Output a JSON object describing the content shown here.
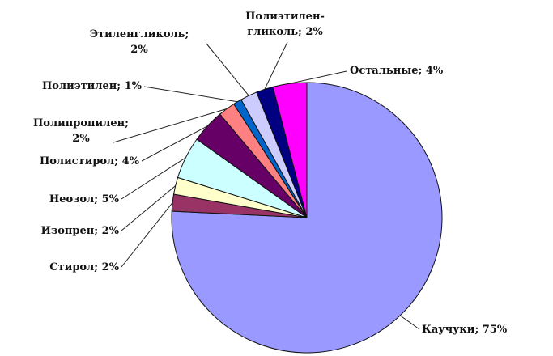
{
  "chart_data": {
    "type": "pie",
    "title": "",
    "unit": "%",
    "slices": [
      {
        "label": "Каучуки; 75%",
        "value": 75,
        "color": "#9999ff"
      },
      {
        "label": "Стирол; 2%",
        "value": 2,
        "color": "#993366"
      },
      {
        "label": "Изопрен; 2%",
        "value": 2,
        "color": "#ffffcc"
      },
      {
        "label": "Неозол; 5%",
        "value": 5,
        "color": "#ccffff"
      },
      {
        "label": "Полистирол; 4%",
        "value": 4,
        "color": "#660066"
      },
      {
        "label": "Полипропилен; 2%",
        "value": 2,
        "color": "#ff8080"
      },
      {
        "label": "Полиэтилен; 1%",
        "value": 1,
        "color": "#0066cc"
      },
      {
        "label": "Этиленгликоль; 2%",
        "value": 2,
        "color": "#ccccff"
      },
      {
        "label": "Полиэтилен-гликоль; 2%",
        "value": 2,
        "color": "#000080"
      },
      {
        "label": "Остальные; 4%",
        "value": 4,
        "color": "#ff00ff"
      }
    ]
  }
}
